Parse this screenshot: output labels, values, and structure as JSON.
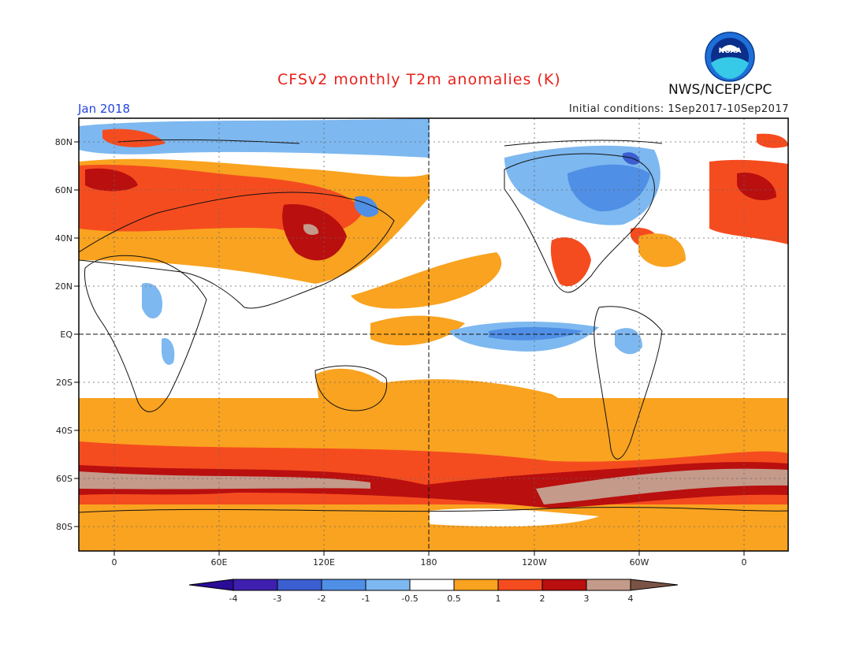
{
  "header": {
    "title": "CFSv2 monthly T2m anomalies (K)",
    "agency": "NWS/NCEP/CPC",
    "date": "Jan 2018",
    "initial_conditions": "Initial conditions: 1Sep2017-10Sep2017",
    "logo_text": "NOAA"
  },
  "axes": {
    "lat_labels": [
      "80N",
      "60N",
      "40N",
      "20N",
      "EQ",
      "20S",
      "40S",
      "60S",
      "80S"
    ],
    "lon_labels": [
      "0",
      "60E",
      "120E",
      "180",
      "120W",
      "60W",
      "0"
    ]
  },
  "colorbar": {
    "ticks": [
      "-4",
      "-3",
      "-2",
      "-1",
      "-0.5",
      "0.5",
      "1",
      "2",
      "3",
      "4"
    ],
    "colors": [
      "#3f1fb0",
      "#3b5fd1",
      "#4f8fe6",
      "#7db8f0",
      "#ffffff",
      "#f9a320",
      "#f54c1f",
      "#b90f0f",
      "#c49a8a"
    ],
    "low_end_color": "#2a0c96",
    "high_end_color": "#7a5346"
  },
  "colors": {
    "title": "#e8201a",
    "date": "#2244dd"
  }
}
